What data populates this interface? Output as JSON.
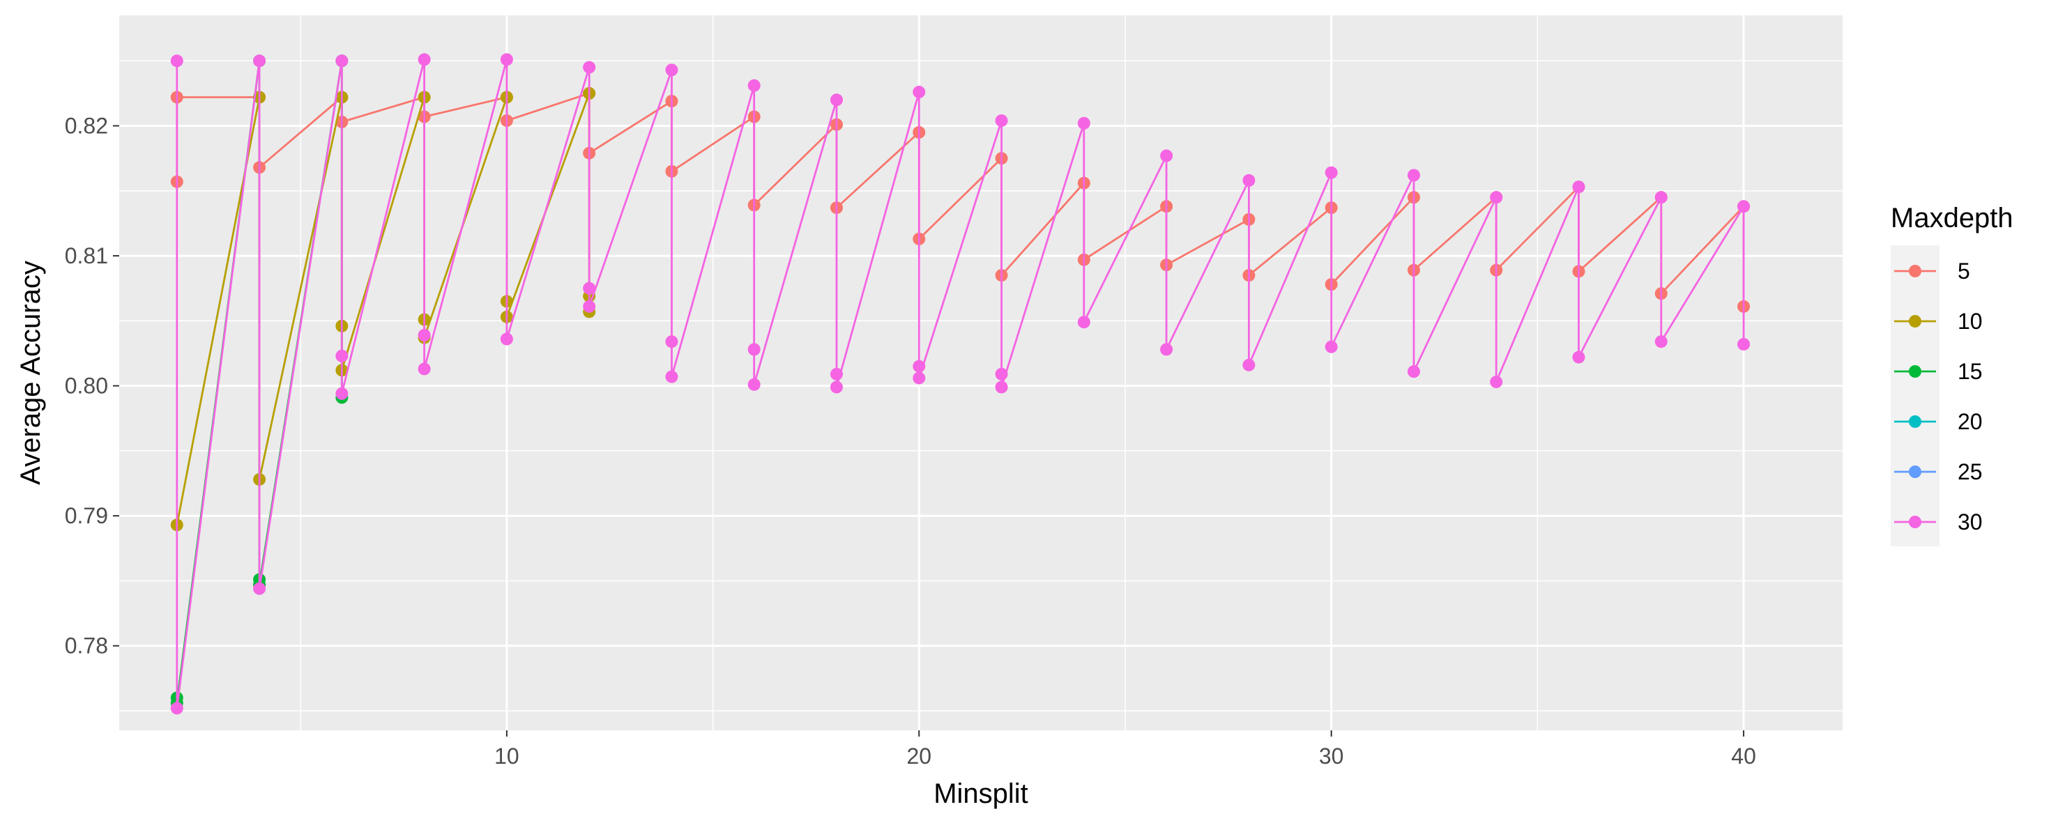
{
  "chart_data": {
    "type": "line",
    "title": "",
    "xlabel": "Minsplit",
    "ylabel": "Average Accuracy",
    "xlim": [
      0.6,
      42.4
    ],
    "ylim": [
      0.7735,
      0.8285
    ],
    "x_ticks": [
      10,
      20,
      30,
      40
    ],
    "x_tick_labels": [
      "10",
      "20",
      "30",
      "40"
    ],
    "y_ticks": [
      0.78,
      0.79,
      0.8,
      0.81,
      0.82
    ],
    "y_tick_labels": [
      "0.78",
      "0.79",
      "0.80",
      "0.81",
      "0.82"
    ],
    "grid": true,
    "legend": {
      "title": "Maxdepth",
      "position": "right"
    },
    "series": [
      {
        "name": "5",
        "color": "#F8766D",
        "points": [
          [
            2,
            0.8157
          ],
          [
            2,
            0.8222
          ],
          [
            4,
            0.8222
          ],
          [
            4,
            0.8168
          ],
          [
            6,
            0.8222
          ],
          [
            6,
            0.8203
          ],
          [
            8,
            0.8222
          ],
          [
            8,
            0.8207
          ],
          [
            10,
            0.8222
          ],
          [
            10,
            0.8204
          ],
          [
            12,
            0.8225
          ],
          [
            12,
            0.8179
          ],
          [
            14,
            0.8219
          ],
          [
            14,
            0.8165
          ],
          [
            16,
            0.8207
          ],
          [
            16,
            0.8139
          ],
          [
            18,
            0.8201
          ],
          [
            18,
            0.8137
          ],
          [
            20,
            0.8195
          ],
          [
            20,
            0.8113
          ],
          [
            22,
            0.8175
          ],
          [
            22,
            0.8085
          ],
          [
            24,
            0.8156
          ],
          [
            24,
            0.8097
          ],
          [
            26,
            0.8138
          ],
          [
            26,
            0.8093
          ],
          [
            28,
            0.8128
          ],
          [
            28,
            0.8085
          ],
          [
            30,
            0.8137
          ],
          [
            30,
            0.8078
          ],
          [
            32,
            0.8145
          ],
          [
            32,
            0.8089
          ],
          [
            34,
            0.8145
          ],
          [
            34,
            0.8089
          ],
          [
            36,
            0.8153
          ],
          [
            36,
            0.8088
          ],
          [
            38,
            0.8145
          ],
          [
            38,
            0.8071
          ],
          [
            40,
            0.8138
          ],
          [
            40,
            0.8061
          ]
        ]
      },
      {
        "name": "10",
        "color": "#B79F00",
        "points": [
          [
            2,
            0.7893
          ],
          [
            4,
            0.8222
          ],
          [
            4,
            0.7928
          ],
          [
            6,
            0.8222
          ],
          [
            6,
            0.8046
          ],
          [
            6,
            0.8012
          ],
          [
            8,
            0.8222
          ],
          [
            8,
            0.8051
          ],
          [
            8,
            0.8037
          ],
          [
            10,
            0.8222
          ],
          [
            10,
            0.8065
          ],
          [
            10,
            0.8053
          ],
          [
            12,
            0.8225
          ],
          [
            12,
            0.8069
          ],
          [
            12,
            0.8057
          ]
        ]
      },
      {
        "name": "15",
        "color": "#00BA38",
        "points": [
          [
            2,
            0.776
          ],
          [
            2,
            0.7756
          ],
          [
            4,
            0.825
          ],
          [
            4,
            0.7851
          ],
          [
            4,
            0.7847
          ],
          [
            6,
            0.825
          ],
          [
            6,
            0.7991
          ]
        ]
      },
      {
        "name": "20",
        "color": "#00BFC4",
        "points": []
      },
      {
        "name": "25",
        "color": "#619CFF",
        "points": []
      },
      {
        "name": "30",
        "color": "#F564E3",
        "points": [
          [
            2,
            0.825
          ],
          [
            2,
            0.7752
          ],
          [
            4,
            0.825
          ],
          [
            4,
            0.7844
          ],
          [
            6,
            0.825
          ],
          [
            6,
            0.8023
          ],
          [
            6,
            0.7994
          ],
          [
            8,
            0.8251
          ],
          [
            8,
            0.8039
          ],
          [
            8,
            0.8013
          ],
          [
            10,
            0.8251
          ],
          [
            10,
            0.8036
          ],
          [
            12,
            0.8245
          ],
          [
            12,
            0.8075
          ],
          [
            12,
            0.8061
          ],
          [
            14,
            0.8243
          ],
          [
            14,
            0.8034
          ],
          [
            14,
            0.8007
          ],
          [
            16,
            0.8231
          ],
          [
            16,
            0.8028
          ],
          [
            16,
            0.8001
          ],
          [
            18,
            0.822
          ],
          [
            18,
            0.8009
          ],
          [
            18,
            0.7999
          ],
          [
            20,
            0.8226
          ],
          [
            20,
            0.8015
          ],
          [
            20,
            0.8006
          ],
          [
            22,
            0.8204
          ],
          [
            22,
            0.8009
          ],
          [
            22,
            0.7999
          ],
          [
            24,
            0.8202
          ],
          [
            24,
            0.8049
          ],
          [
            26,
            0.8177
          ],
          [
            26,
            0.8028
          ],
          [
            28,
            0.8158
          ],
          [
            28,
            0.8016
          ],
          [
            30,
            0.8164
          ],
          [
            30,
            0.803
          ],
          [
            32,
            0.8162
          ],
          [
            32,
            0.8011
          ],
          [
            34,
            0.8145
          ],
          [
            34,
            0.8003
          ],
          [
            36,
            0.8153
          ],
          [
            36,
            0.8022
          ],
          [
            38,
            0.8145
          ],
          [
            38,
            0.8034
          ],
          [
            40,
            0.8138
          ],
          [
            40,
            0.8032
          ]
        ]
      }
    ]
  }
}
